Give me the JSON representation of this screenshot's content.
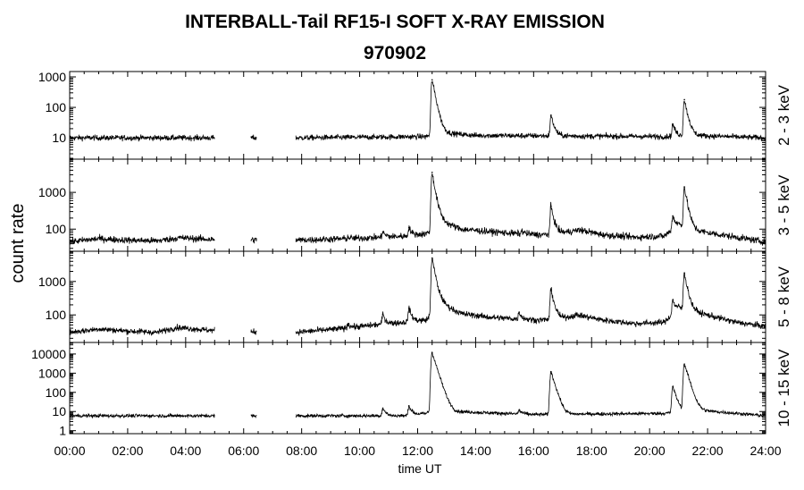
{
  "chart_data": {
    "type": "line",
    "title": "INTERBALL-Tail RF15-I SOFT X-RAY EMISSION",
    "subtitle": "970902",
    "xlabel": "time UT",
    "ylabel": "count rate",
    "x_ticks": [
      "00:00",
      "02:00",
      "04:00",
      "06:00",
      "08:00",
      "10:00",
      "12:00",
      "14:00",
      "16:00",
      "18:00",
      "20:00",
      "22:00",
      "24:00"
    ],
    "xlim_hours": [
      0,
      24
    ],
    "y_scale": "log",
    "grid": false,
    "data_gaps_hours": [
      [
        5.0,
        6.25
      ],
      [
        6.45,
        7.8
      ]
    ],
    "panels": [
      {
        "name": "2 - 3 keV",
        "ylim": [
          2,
          1500
        ],
        "y_ticks": [
          "1000",
          "100",
          "10"
        ],
        "y_tick_values": [
          1000,
          100,
          10
        ],
        "baseline": [
          [
            0,
            10
          ],
          [
            5,
            10
          ],
          [
            7.8,
            10
          ],
          [
            12.3,
            11
          ],
          [
            12.6,
            15
          ],
          [
            14,
            12
          ],
          [
            20.5,
            11
          ],
          [
            21.5,
            12
          ],
          [
            24,
            10
          ]
        ],
        "peaks": [
          [
            12.5,
            800
          ],
          [
            16.6,
            55
          ],
          [
            20.8,
            28
          ],
          [
            21.2,
            180
          ]
        ]
      },
      {
        "name": "3 - 5 keV",
        "ylim": [
          25,
          8000
        ],
        "y_ticks": [
          "1000",
          "100"
        ],
        "y_tick_values": [
          1000,
          100
        ],
        "baseline": [
          [
            0,
            45
          ],
          [
            1,
            55
          ],
          [
            2,
            50
          ],
          [
            3,
            48
          ],
          [
            3.8,
            58
          ],
          [
            5,
            52
          ],
          [
            7.8,
            50
          ],
          [
            9.5,
            55
          ],
          [
            10.8,
            60
          ],
          [
            11.6,
            65
          ],
          [
            12.3,
            75
          ],
          [
            12.8,
            160
          ],
          [
            13.5,
            100
          ],
          [
            14.5,
            85
          ],
          [
            15.5,
            75
          ],
          [
            16.3,
            70
          ],
          [
            17,
            80
          ],
          [
            17.6,
            95
          ],
          [
            18.4,
            70
          ],
          [
            19.5,
            60
          ],
          [
            20.5,
            65
          ],
          [
            21,
            130
          ],
          [
            21.6,
            90
          ],
          [
            23,
            60
          ],
          [
            24,
            45
          ]
        ],
        "peaks": [
          [
            9.6,
            60
          ],
          [
            10.8,
            85
          ],
          [
            11.7,
            110
          ],
          [
            12.5,
            3500
          ],
          [
            15.6,
            90
          ],
          [
            16.6,
            420
          ],
          [
            20.8,
            230
          ],
          [
            21.2,
            1400
          ]
        ]
      },
      {
        "name": "5 - 8 keV",
        "ylim": [
          15,
          8000
        ],
        "y_ticks": [
          "1000",
          "100"
        ],
        "y_tick_values": [
          1000,
          100
        ],
        "baseline": [
          [
            0,
            30
          ],
          [
            1,
            38
          ],
          [
            2,
            33
          ],
          [
            3,
            30
          ],
          [
            3.7,
            42
          ],
          [
            5,
            34
          ],
          [
            7.8,
            30
          ],
          [
            9.5,
            40
          ],
          [
            10.5,
            50
          ],
          [
            11.5,
            60
          ],
          [
            12.3,
            70
          ],
          [
            12.8,
            220
          ],
          [
            13.5,
            110
          ],
          [
            14.5,
            85
          ],
          [
            15.5,
            75
          ],
          [
            16.2,
            70
          ],
          [
            17,
            80
          ],
          [
            17.5,
            100
          ],
          [
            18.4,
            70
          ],
          [
            19.5,
            55
          ],
          [
            20.5,
            60
          ],
          [
            21,
            160
          ],
          [
            21.6,
            120
          ],
          [
            23,
            60
          ],
          [
            24,
            45
          ]
        ],
        "peaks": [
          [
            9.6,
            55
          ],
          [
            10.8,
            105
          ],
          [
            11.7,
            160
          ],
          [
            12.5,
            5000
          ],
          [
            15.5,
            120
          ],
          [
            16.6,
            600
          ],
          [
            20.8,
            280
          ],
          [
            21.2,
            1800
          ]
        ]
      },
      {
        "name": "10 - 15 keV",
        "ylim": [
          0.7,
          40000
        ],
        "y_ticks": [
          "10000",
          "1000",
          "100",
          "10",
          "1"
        ],
        "y_tick_values": [
          10000,
          1000,
          100,
          10,
          1
        ],
        "baseline": [
          [
            0,
            6
          ],
          [
            5,
            6
          ],
          [
            7.8,
            6
          ],
          [
            11.5,
            6
          ],
          [
            12.3,
            8
          ],
          [
            12.8,
            30
          ],
          [
            13.3,
            10
          ],
          [
            16,
            7
          ],
          [
            20.5,
            8
          ],
          [
            21.6,
            12
          ],
          [
            24,
            6
          ]
        ],
        "peaks": [
          [
            10.8,
            15
          ],
          [
            11.7,
            20
          ],
          [
            12.5,
            12000
          ],
          [
            15.5,
            12
          ],
          [
            16.6,
            1200
          ],
          [
            20.8,
            200
          ],
          [
            21.2,
            3000
          ]
        ]
      }
    ]
  }
}
